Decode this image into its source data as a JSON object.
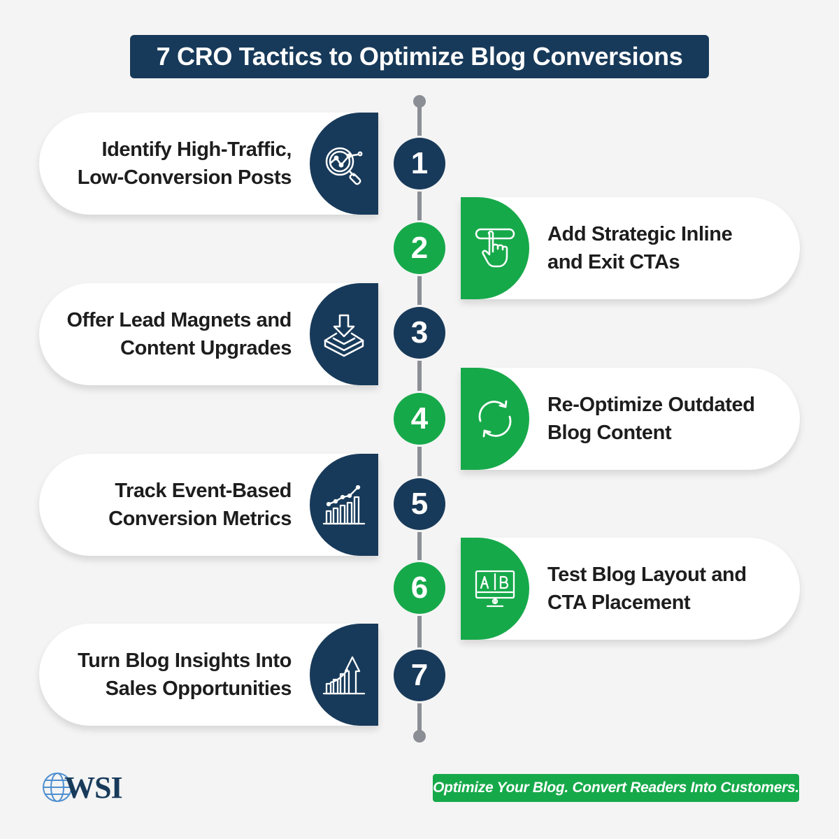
{
  "title": "7 CRO Tactics to Optimize Blog Conversions",
  "colors": {
    "navy": "#183a5a",
    "green": "#16a94a",
    "line": "#8b8e94",
    "background": "#f4f4f4"
  },
  "steps": [
    {
      "number": "1",
      "line1": "Identify High-Traffic,",
      "line2": "Low-Conversion Posts",
      "icon": "magnifier-chart-icon"
    },
    {
      "number": "2",
      "line1": "Add Strategic Inline",
      "line2": "and Exit CTAs",
      "icon": "hand-click-button-icon"
    },
    {
      "number": "3",
      "line1": "Offer Lead Magnets and",
      "line2": "Content Upgrades",
      "icon": "download-tray-icon"
    },
    {
      "number": "4",
      "line1": "Re-Optimize Outdated",
      "line2": "Blog Content",
      "icon": "refresh-icon"
    },
    {
      "number": "5",
      "line1": "Track Event-Based",
      "line2": "Conversion Metrics",
      "icon": "bar-chart-trend-icon"
    },
    {
      "number": "6",
      "line1": "Test Blog Layout and",
      "line2": "CTA Placement",
      "icon": "ab-test-monitor-icon"
    },
    {
      "number": "7",
      "line1": "Turn Blog Insights Into",
      "line2": "Sales Opportunities",
      "icon": "growth-arrow-chart-icon"
    }
  ],
  "logo": {
    "text": "WSI"
  },
  "tagline": "Optimize Your Blog. Convert Readers Into Customers."
}
